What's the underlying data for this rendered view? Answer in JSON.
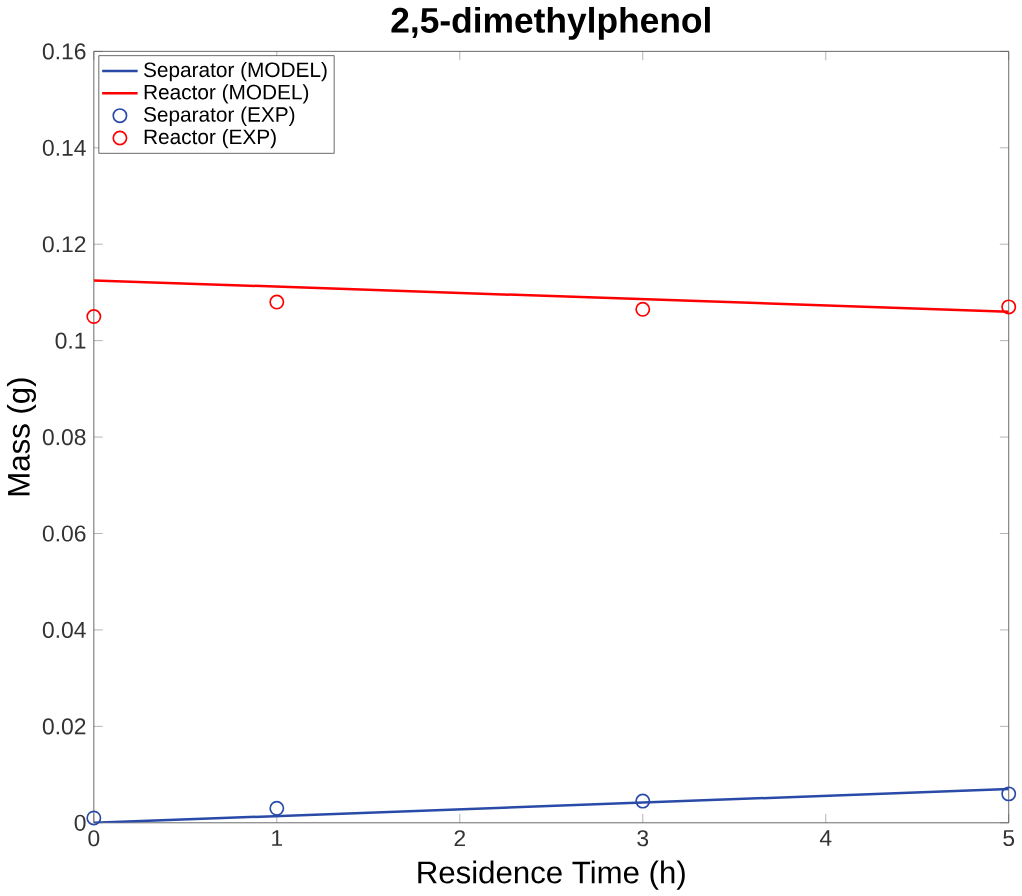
{
  "chart_data": {
    "type": "line",
    "title": "2,5-dimethylphenol",
    "xlabel": "Residence Time (h)",
    "ylabel": "Mass (g)",
    "xlim": [
      0,
      5
    ],
    "ylim": [
      0,
      0.16
    ],
    "xticks": [
      0,
      1,
      2,
      3,
      4,
      5
    ],
    "yticks": [
      0,
      0.02,
      0.04,
      0.06,
      0.08,
      0.1,
      0.12,
      0.14,
      0.16
    ],
    "legend": "top left",
    "grid": false,
    "series": [
      {
        "name": "Separator (MODEL)",
        "color": "#2a4aa8",
        "x": [
          0,
          5
        ],
        "values": [
          0,
          0.007
        ],
        "marker": "none"
      },
      {
        "name": "Reactor (MODEL)",
        "color": "#ff0000",
        "x": [
          0,
          5
        ],
        "values": [
          0.1125,
          0.106
        ],
        "marker": "none"
      },
      {
        "name": "Separator (EXP)",
        "type": "scatter",
        "color": "#2a4aa8",
        "x": [
          0,
          1,
          3,
          5
        ],
        "values": [
          0.001,
          0.003,
          0.0045,
          0.006
        ],
        "marker": "circle"
      },
      {
        "name": "Reactor (EXP)",
        "type": "scatter",
        "color": "#ff0000",
        "x": [
          0,
          1,
          3,
          5
        ],
        "values": [
          0.105,
          0.108,
          0.1065,
          0.107
        ],
        "marker": "circle"
      }
    ]
  }
}
